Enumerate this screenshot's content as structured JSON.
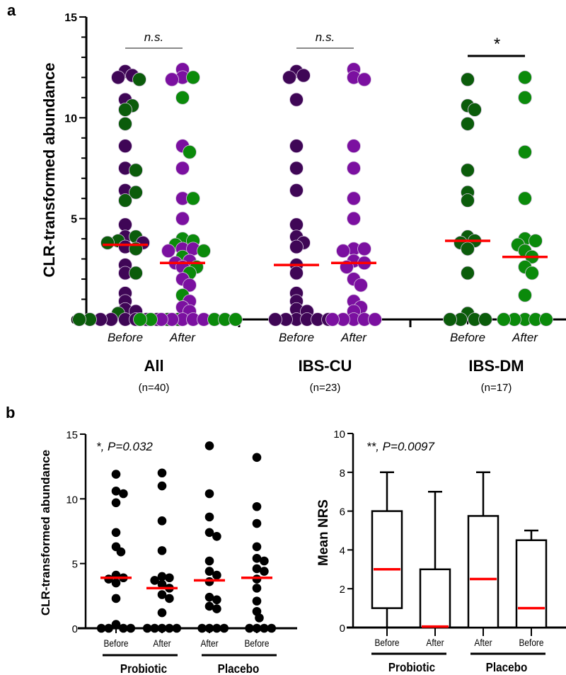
{
  "colors": {
    "cu_before": "#3f0656",
    "cu_after": "#7b10a0",
    "dm_before": "#0b5c0b",
    "dm_after": "#0b8a0b",
    "median": "#ff0000",
    "black": "#000000"
  },
  "chart_data": [
    {
      "panel_label": "a",
      "type": "scatter",
      "ylabel": "CLR-transformed abundance",
      "ylim": [
        0,
        15
      ],
      "yticks": [
        "0",
        "5",
        "10",
        "15"
      ],
      "ytick_values": [
        0,
        5,
        10,
        15
      ],
      "groups": [
        {
          "name": "All",
          "n_label": "(n=40)",
          "significance": "n.s.",
          "series": [
            {
              "label": "Before",
              "median": 3.7,
              "sources": [
                "IBS-CU.Before",
                "IBS-DM.Before"
              ]
            },
            {
              "label": "After",
              "median": 2.8,
              "sources": [
                "IBS-CU.After",
                "IBS-DM.After"
              ]
            }
          ]
        },
        {
          "name": "IBS-CU",
          "n_label": "(n=23)",
          "significance": "n.s.",
          "series": [
            {
              "label": "Before",
              "median": 2.7,
              "color_key": "cu_before",
              "values": [
                12.3,
                12.1,
                12.0,
                10.9,
                8.6,
                7.5,
                6.4,
                4.7,
                4.1,
                3.8,
                3.6,
                2.7,
                2.3,
                1.3,
                0.9,
                0.5,
                0.4,
                0,
                0,
                0,
                0,
                0,
                0
              ]
            },
            {
              "label": "After",
              "median": 2.8,
              "color_key": "cu_after",
              "values": [
                12.4,
                12.0,
                11.9,
                8.6,
                7.5,
                6.0,
                5.0,
                3.5,
                3.5,
                3.4,
                2.9,
                2.8,
                2.6,
                2.0,
                1.7,
                0.9,
                0.6,
                0.4,
                0,
                0,
                0,
                0,
                0
              ]
            }
          ]
        },
        {
          "name": "IBS-DM",
          "n_label": "(n=17)",
          "significance": "*",
          "series": [
            {
              "label": "Before",
              "median": 3.9,
              "color_key": "dm_before",
              "values": [
                11.9,
                10.6,
                10.4,
                9.7,
                7.4,
                6.3,
                5.9,
                4.1,
                3.9,
                3.8,
                3.5,
                2.3,
                0.3,
                0,
                0,
                0,
                0
              ]
            },
            {
              "label": "After",
              "median": 3.1,
              "color_key": "dm_after",
              "values": [
                12.0,
                11.0,
                8.3,
                6.0,
                4.0,
                3.9,
                3.7,
                3.4,
                3.1,
                2.6,
                2.3,
                1.2,
                0,
                0,
                0,
                0,
                0
              ]
            }
          ]
        }
      ]
    },
    {
      "panel_label": "b",
      "type": "scatter",
      "ylabel": "CLR-transformed abundance",
      "ylim": [
        0,
        15
      ],
      "yticks": [
        "0",
        "5",
        "10",
        "15"
      ],
      "ytick_values": [
        0,
        5,
        10,
        15
      ],
      "annotation": "*, P=0.032",
      "group_labels": [
        "Probiotic",
        "Placebo"
      ],
      "series": [
        {
          "label": "Before",
          "group": "Probiotic",
          "median": 3.9,
          "values": [
            11.9,
            10.6,
            10.4,
            9.7,
            7.4,
            6.3,
            5.9,
            4.1,
            3.9,
            3.8,
            3.5,
            2.3,
            0.3,
            0,
            0,
            0,
            0
          ]
        },
        {
          "label": "After",
          "group": "Probiotic",
          "median": 3.1,
          "values": [
            12.0,
            11.0,
            8.3,
            6.0,
            4.0,
            3.9,
            3.7,
            3.4,
            3.1,
            2.6,
            2.3,
            1.2,
            0,
            0,
            0,
            0,
            0
          ]
        },
        {
          "label": "After",
          "group": "Placebo",
          "median": 3.7,
          "values": [
            14.1,
            10.4,
            8.6,
            7.4,
            7.1,
            5.2,
            4.4,
            4.1,
            3.6,
            2.4,
            2.2,
            1.7,
            1.5,
            0,
            0,
            0,
            0
          ]
        },
        {
          "label": "Before",
          "group": "Placebo",
          "median": 3.9,
          "values": [
            13.2,
            9.4,
            8.1,
            6.3,
            5.4,
            5.2,
            4.6,
            4.4,
            3.8,
            3.1,
            2.1,
            1.3,
            0.8,
            0,
            0,
            0,
            0
          ]
        }
      ]
    },
    {
      "type": "box",
      "ylabel": "Mean NRS",
      "ylim": [
        0,
        10
      ],
      "yticks": [
        "0",
        "2",
        "4",
        "6",
        "8",
        "10"
      ],
      "ytick_values": [
        0,
        2,
        4,
        6,
        8,
        10
      ],
      "annotation": "**, P=0.0097",
      "group_labels": [
        "Probiotic",
        "Placebo"
      ],
      "series": [
        {
          "label": "Before",
          "group": "Probiotic",
          "min": 0,
          "q1": 1,
          "median": 3,
          "q3": 6,
          "max": 8
        },
        {
          "label": "After",
          "group": "Probiotic",
          "min": 0,
          "q1": 0,
          "median": 0.05,
          "q3": 3,
          "max": 7
        },
        {
          "label": "After",
          "group": "Placebo",
          "min": 0,
          "q1": 0,
          "median": 2.5,
          "q3": 5.75,
          "max": 8
        },
        {
          "label": "Before",
          "group": "Placebo",
          "min": 0,
          "q1": 0,
          "median": 1,
          "q3": 4.5,
          "max": 5
        }
      ]
    }
  ]
}
